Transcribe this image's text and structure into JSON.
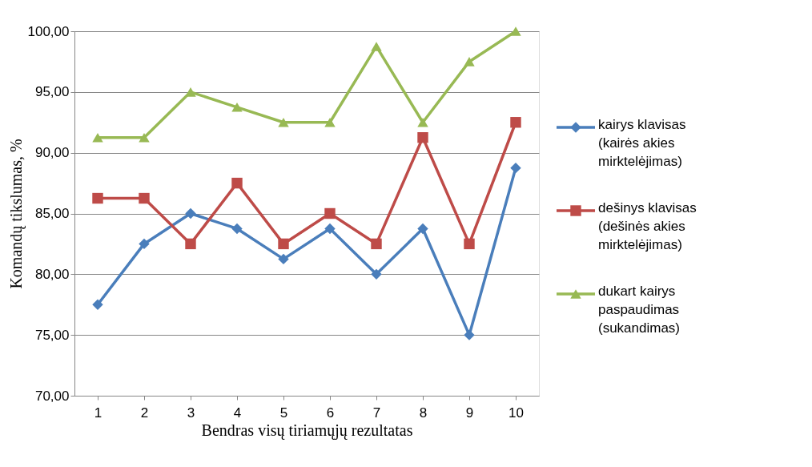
{
  "chart_data": {
    "type": "line",
    "xlabel": "Bendras visų tiriamųjų rezultatas",
    "ylabel": "Komandų tikslumas, %",
    "categories": [
      "1",
      "2",
      "3",
      "4",
      "5",
      "6",
      "7",
      "8",
      "9",
      "10"
    ],
    "series": [
      {
        "name": "kairys klavisas (kairės akies mirktelėjimas)",
        "color": "#4a7ebb",
        "marker": "diamond",
        "values": [
          77.5,
          82.5,
          85,
          83.75,
          81.25,
          83.75,
          80,
          83.75,
          75,
          88.75
        ]
      },
      {
        "name": "dešinys klavisas (dešinės akies mirktelėjimas)",
        "color": "#be4b48",
        "marker": "square",
        "values": [
          86.25,
          86.25,
          82.5,
          87.5,
          82.5,
          85,
          82.5,
          91.25,
          82.5,
          92.5
        ]
      },
      {
        "name": "dukart kairys paspaudimas (sukandimas)",
        "color": "#98b954",
        "marker": "triangle",
        "values": [
          91.25,
          91.25,
          95,
          93.75,
          92.5,
          92.5,
          98.75,
          92.5,
          97.5,
          100
        ]
      }
    ],
    "ylim": [
      70,
      100
    ],
    "yticks": [
      {
        "value": 70,
        "label": "70,00"
      },
      {
        "value": 75,
        "label": "75,00"
      },
      {
        "value": 80,
        "label": "80,00"
      },
      {
        "value": 85,
        "label": "85,00"
      },
      {
        "value": 90,
        "label": "90,00"
      },
      {
        "value": 95,
        "label": "95,00"
      },
      {
        "value": 100,
        "label": "100,00"
      }
    ],
    "grid": "y",
    "legend": "right",
    "line_style": "solid"
  }
}
